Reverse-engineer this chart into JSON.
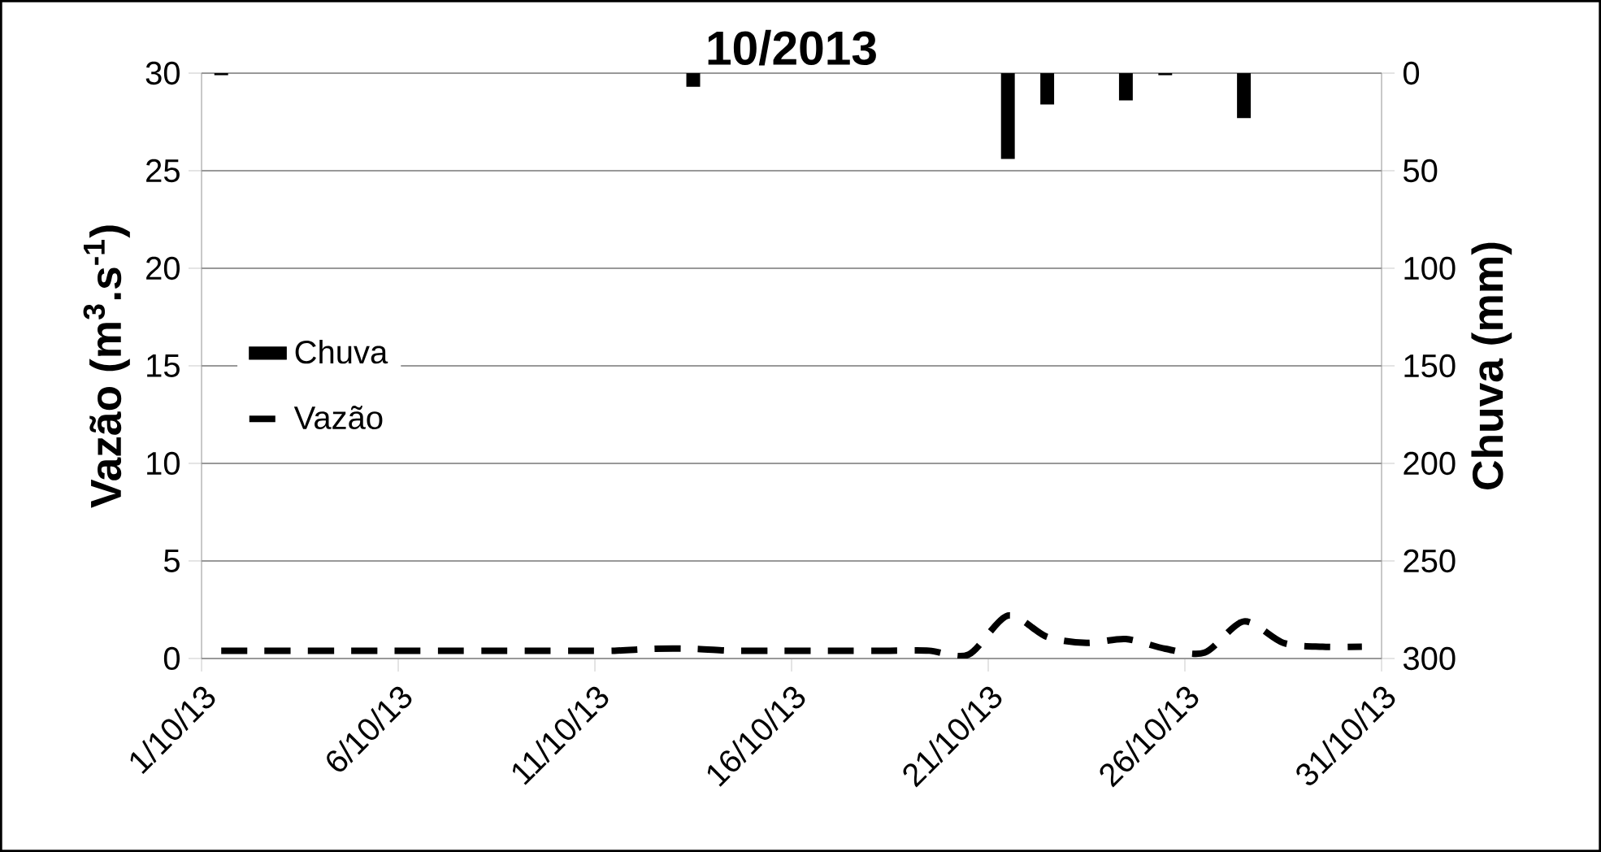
{
  "chart_data": {
    "type": "line",
    "title": "10/2013",
    "ylabel": "Vazão (m$^{3}$.s$^{-1}$)",
    "y2label": "Chuva (mm)",
    "xlim": [
      "2013-10-01",
      "2013-10-31"
    ],
    "xticks": [
      {
        "value": "2013-10-01",
        "label": "1/10/13"
      },
      {
        "value": "2013-10-06",
        "label": "6/10/13"
      },
      {
        "value": "2013-10-11",
        "label": "11/10/13"
      },
      {
        "value": "2013-10-16",
        "label": "16/10/13"
      },
      {
        "value": "2013-10-21",
        "label": "21/10/13"
      },
      {
        "value": "2013-10-26",
        "label": "26/10/13"
      },
      {
        "value": "2013-10-31",
        "label": "31/10/13"
      }
    ],
    "ylim": [
      0,
      30
    ],
    "yticks": [
      0,
      5,
      10,
      15,
      20,
      25,
      30
    ],
    "y2lim": [
      300,
      0
    ],
    "y2ticks": [
      0,
      50,
      100,
      150,
      200,
      250,
      300
    ],
    "grid": "y",
    "legend": "left",
    "marker": "none",
    "series": [
      {
        "name": "Chuva",
        "type": "bar",
        "axis": "y2",
        "color": "#000000",
        "x": [
          "2013-10-01T12:00",
          "2013-10-13T12:00",
          "2013-10-21T12:00",
          "2013-10-22T12:00",
          "2013-10-24T12:00",
          "2013-10-25T12:00",
          "2013-10-27T12:00"
        ],
        "values": [
          1,
          7,
          44,
          16,
          14,
          1,
          23
        ]
      },
      {
        "name": "Vazão",
        "axis": "y",
        "color": "#000000",
        "line_style": "dashed",
        "x": [
          "2013-10-01T12:00",
          "2013-10-02T12:00",
          "2013-10-03T12:00",
          "2013-10-04T12:00",
          "2013-10-05T12:00",
          "2013-10-06T12:00",
          "2013-10-07T12:00",
          "2013-10-08T12:00",
          "2013-10-09T12:00",
          "2013-10-10T12:00",
          "2013-10-11T12:00",
          "2013-10-12T12:00",
          "2013-10-13T12:00",
          "2013-10-14T12:00",
          "2013-10-15T12:00",
          "2013-10-16T12:00",
          "2013-10-17T12:00",
          "2013-10-18T12:00",
          "2013-10-19T12:00",
          "2013-10-20T12:00",
          "2013-10-21T12:00",
          "2013-10-22T12:00",
          "2013-10-23T12:00",
          "2013-10-24T12:00",
          "2013-10-25T12:00",
          "2013-10-26T12:00",
          "2013-10-27T12:00",
          "2013-10-28T12:00",
          "2013-10-29T12:00",
          "2013-10-30T12:00"
        ],
        "values": [
          0.4,
          0.4,
          0.4,
          0.4,
          0.4,
          0.4,
          0.4,
          0.4,
          0.4,
          0.4,
          0.4,
          0.5,
          0.5,
          0.4,
          0.4,
          0.4,
          0.4,
          0.4,
          0.4,
          0.2,
          2.2,
          1.1,
          0.8,
          1.0,
          0.5,
          0.3,
          1.9,
          0.8,
          0.6,
          0.6
        ]
      }
    ]
  }
}
